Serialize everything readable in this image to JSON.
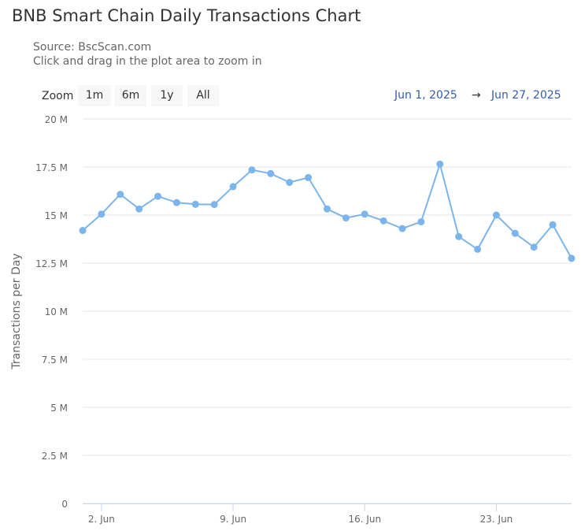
{
  "header": {
    "title": "BNB Smart Chain Daily Transactions Chart",
    "source": "Source: BscScan.com",
    "hint": "Click and drag in the plot area to zoom in"
  },
  "zoom": {
    "label": "Zoom",
    "buttons": [
      "1m",
      "6m",
      "1y",
      "All"
    ]
  },
  "range": {
    "from": "Jun 1, 2025",
    "arrow": "→",
    "to": "Jun 27, 2025"
  },
  "colors": {
    "series": "#7cb5ec",
    "grid": "#e6e6e6",
    "axis_text": "#666666"
  },
  "chart_data": {
    "type": "line",
    "ylabel": "Transactions per Day",
    "ylim": [
      0,
      20000000
    ],
    "yticks": [
      0,
      2500000,
      5000000,
      7500000,
      10000000,
      12500000,
      15000000,
      17500000,
      20000000
    ],
    "ytick_labels": [
      "0",
      "2.5 M",
      "5 M",
      "7.5 M",
      "10 M",
      "12.5 M",
      "15 M",
      "17.5 M",
      "20 M"
    ],
    "xlim": [
      "2025-06-01",
      "2025-06-27"
    ],
    "xticks": [
      "2025-06-02",
      "2025-06-09",
      "2025-06-16",
      "2025-06-23"
    ],
    "xtick_labels": [
      "2. Jun",
      "9. Jun",
      "16. Jun",
      "23. Jun"
    ],
    "grid": true,
    "series": [
      {
        "x": [
          "2025-06-01",
          "2025-06-02",
          "2025-06-03",
          "2025-06-04",
          "2025-06-05",
          "2025-06-06",
          "2025-06-07",
          "2025-06-08",
          "2025-06-09",
          "2025-06-10",
          "2025-06-11",
          "2025-06-12",
          "2025-06-13",
          "2025-06-14",
          "2025-06-15",
          "2025-06-16",
          "2025-06-17",
          "2025-06-18",
          "2025-06-19",
          "2025-06-20",
          "2025-06-21",
          "2025-06-22",
          "2025-06-23",
          "2025-06-24",
          "2025-06-25",
          "2025-06-26",
          "2025-06-27"
        ],
        "values": [
          14200000,
          15050000,
          16080000,
          15320000,
          15980000,
          15650000,
          15560000,
          15550000,
          16480000,
          17350000,
          17160000,
          16700000,
          16950000,
          15320000,
          14850000,
          15050000,
          14700000,
          14300000,
          14650000,
          17650000,
          13880000,
          13220000,
          15000000,
          14050000,
          13330000,
          14500000,
          12750000
        ]
      }
    ]
  }
}
